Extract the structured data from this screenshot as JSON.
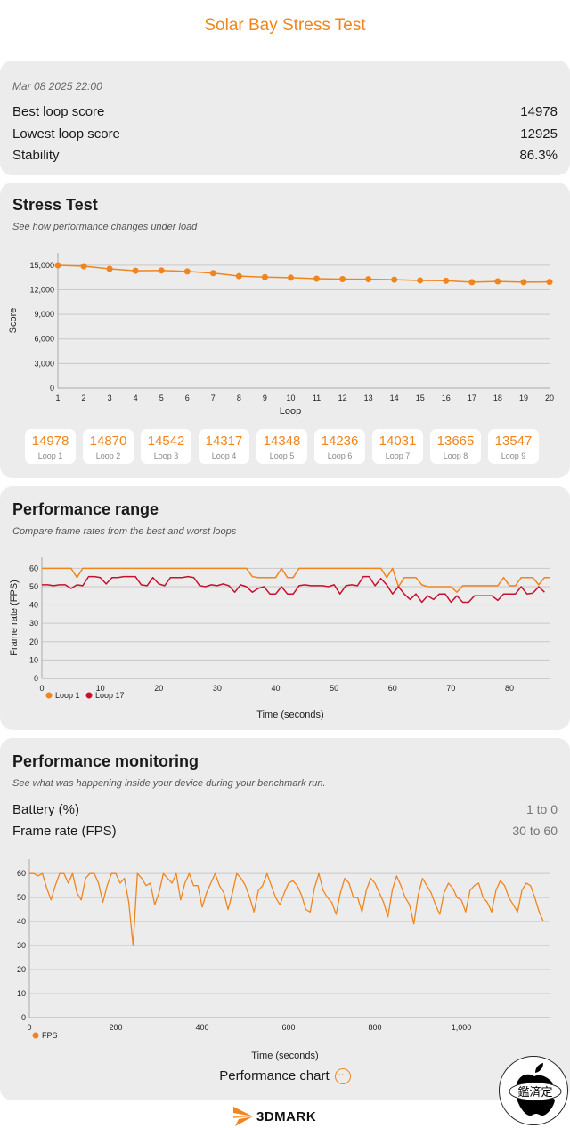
{
  "title": "Solar Bay Stress Test",
  "summary": {
    "date": "Mar 08 2025 22:00",
    "rows": [
      {
        "label": "Best loop score",
        "value": "14978"
      },
      {
        "label": "Lowest loop score",
        "value": "12925"
      },
      {
        "label": "Stability",
        "value": "86.3%"
      }
    ]
  },
  "stress": {
    "title": "Stress Test",
    "subtitle": "See how performance changes under load",
    "boxes": [
      {
        "score": "14978",
        "label": "Loop 1"
      },
      {
        "score": "14870",
        "label": "Loop 2"
      },
      {
        "score": "14542",
        "label": "Loop 3"
      },
      {
        "score": "14317",
        "label": "Loop 4"
      },
      {
        "score": "14348",
        "label": "Loop 5"
      },
      {
        "score": "14236",
        "label": "Loop 6"
      },
      {
        "score": "14031",
        "label": "Loop 7"
      },
      {
        "score": "13665",
        "label": "Loop 8"
      },
      {
        "score": "13547",
        "label": "Loop 9"
      }
    ]
  },
  "range": {
    "title": "Performance range",
    "subtitle": "Compare frame rates from the best and worst loops"
  },
  "monitoring": {
    "title": "Performance monitoring",
    "subtitle": "See what was happening inside your device during your benchmark run.",
    "rows": [
      {
        "label": "Battery (%)",
        "value": "1 to 0"
      },
      {
        "label": "Frame rate (FPS)",
        "value": "30 to 60"
      }
    ],
    "chart_button": "Performance chart",
    "chart_button_icon": "ellipsis-circle-icon"
  },
  "footer": {
    "logo": "3DMARK",
    "stamp": "鑑定済"
  },
  "colors": {
    "accent": "#f0851e",
    "loop17": "#c8102e",
    "card": "#ececec"
  },
  "chart_data": [
    {
      "type": "line",
      "xlabel": "Loop",
      "ylabel": "Score",
      "xlim": [
        1,
        20
      ],
      "ylim": [
        0,
        16500
      ],
      "yticks": [
        0,
        3000,
        6000,
        9000,
        12000,
        15000
      ],
      "xticks": [
        1,
        2,
        3,
        4,
        5,
        6,
        7,
        8,
        9,
        10,
        11,
        12,
        13,
        14,
        15,
        16,
        17,
        18,
        19,
        20
      ],
      "grid": true,
      "markers": true,
      "series": [
        {
          "color": "#f0851e",
          "x": [
            1,
            2,
            3,
            4,
            5,
            6,
            7,
            8,
            9,
            10,
            11,
            12,
            13,
            14,
            15,
            16,
            17,
            18,
            19,
            20
          ],
          "y": [
            14978,
            14870,
            14542,
            14317,
            14348,
            14236,
            14031,
            13665,
            13547,
            13470,
            13350,
            13300,
            13290,
            13230,
            13140,
            13100,
            12925,
            13020,
            12930,
            12960
          ]
        }
      ]
    },
    {
      "type": "line",
      "xlabel": "Time (seconds)",
      "ylabel": "Frame rate (FPS)",
      "xlim": [
        0,
        87
      ],
      "ylim": [
        0,
        66
      ],
      "yticks": [
        0,
        10,
        20,
        30,
        40,
        50,
        60
      ],
      "xticks": [
        0,
        10,
        20,
        30,
        40,
        50,
        60,
        70,
        80
      ],
      "grid": true,
      "legend": "bottom-left",
      "series": [
        {
          "name": "Loop 1",
          "color": "#f0851e",
          "y": [
            60,
            60,
            60,
            60,
            60,
            60,
            55,
            60,
            60,
            60,
            60,
            60,
            60,
            60,
            60,
            60,
            60,
            60,
            60,
            60,
            60,
            60,
            60,
            60,
            60,
            60,
            60,
            60,
            60,
            60,
            60,
            60,
            60,
            60,
            60,
            60,
            55.5,
            55,
            55,
            55,
            55,
            60,
            55,
            55,
            60,
            60,
            60,
            60,
            60,
            60,
            60,
            60,
            60,
            60,
            60,
            60,
            60,
            60,
            60,
            55,
            60,
            50,
            55,
            55,
            55,
            51,
            50,
            50,
            50,
            50,
            50,
            47,
            50.5,
            50.5,
            50.5,
            50.5,
            50.5,
            50.5,
            50.5,
            55,
            50.5,
            50.5,
            55,
            55,
            55,
            51,
            55,
            55
          ]
        },
        {
          "name": "Loop 17",
          "color": "#c8102e",
          "y": [
            51,
            51,
            50.5,
            51,
            51,
            49,
            51,
            50.5,
            55.5,
            55.5,
            55,
            51.5,
            55,
            55,
            55.5,
            55.5,
            55.5,
            51,
            50.5,
            55,
            51.5,
            50.5,
            55,
            55,
            55,
            55.5,
            55,
            50.5,
            50,
            51,
            50.5,
            51.5,
            50.5,
            47,
            51,
            50,
            47,
            49,
            50,
            46,
            46,
            50,
            46,
            46,
            50.5,
            51,
            50.5,
            50.5,
            50.5,
            50,
            51,
            46,
            50.5,
            51,
            50.5,
            55.5,
            55.5,
            50.5,
            54.5,
            51,
            46,
            50,
            46,
            43,
            46,
            41.5,
            45,
            43,
            46,
            46,
            41.5,
            45,
            41.5,
            41.5,
            45,
            45,
            45,
            45,
            42.5,
            46,
            46,
            46,
            50,
            46,
            46.5,
            50,
            47
          ]
        }
      ]
    },
    {
      "type": "line",
      "xlabel": "Time (seconds)",
      "ylabel": "",
      "xlim": [
        0,
        1204
      ],
      "ylim": [
        0,
        66
      ],
      "yticks": [
        0,
        10,
        20,
        30,
        40,
        50,
        60
      ],
      "xticks": [
        0,
        200,
        400,
        600,
        800,
        1000
      ],
      "xtick_labels": [
        "0",
        "200",
        "400",
        "600",
        "800",
        "1,000"
      ],
      "grid": true,
      "legend": "bottom-left",
      "x_step": 10,
      "series": [
        {
          "name": "FPS",
          "color": "#f0851e",
          "y": [
            60,
            60,
            59,
            60,
            54,
            49,
            55,
            60,
            60,
            56,
            60,
            52,
            49,
            58,
            60,
            60,
            56,
            48,
            55,
            60,
            60,
            56,
            58,
            48,
            30,
            60,
            58,
            55,
            56,
            47,
            52,
            60,
            58,
            56,
            60,
            49,
            56,
            60,
            55,
            55,
            46,
            52,
            56,
            60,
            55,
            52,
            45,
            52,
            60,
            58,
            55,
            50,
            44,
            53,
            55,
            60,
            55,
            50,
            47,
            52,
            56,
            57,
            55,
            51,
            45,
            44,
            54,
            60,
            53,
            50,
            48,
            43,
            52,
            58,
            56,
            50,
            50,
            44,
            53,
            58,
            56,
            52,
            48,
            42,
            53,
            59,
            55,
            50,
            47,
            39,
            51,
            58,
            55,
            52,
            47,
            43,
            52,
            56,
            54,
            50,
            49,
            44,
            53,
            55,
            56,
            50,
            48,
            44,
            53,
            57,
            55,
            50,
            47,
            44,
            53,
            56,
            55,
            50,
            44,
            40
          ]
        }
      ]
    }
  ]
}
